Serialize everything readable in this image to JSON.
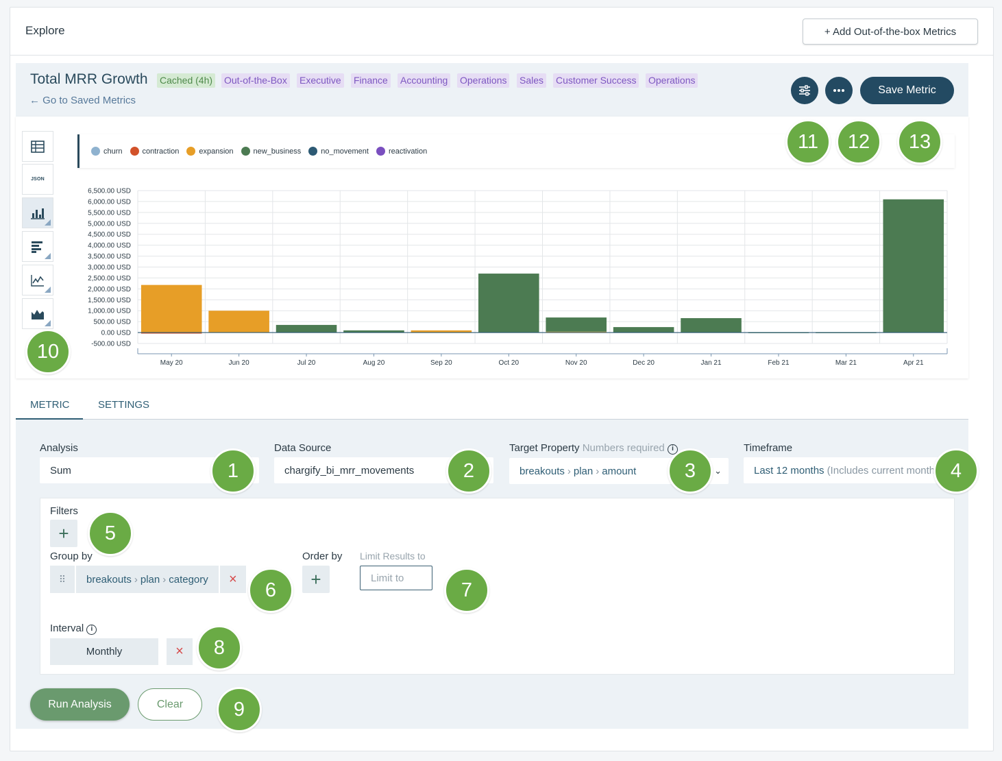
{
  "page": {
    "title": "Explore",
    "add_button": "+ Add Out-of-the-box Metrics"
  },
  "metric": {
    "title": "Total MRR Growth",
    "cache_tag": "Cached (4h)",
    "tags": [
      "Out-of-the-Box",
      "Executive",
      "Finance",
      "Accounting",
      "Operations",
      "Sales",
      "Customer Success",
      "Operations"
    ],
    "back_link": "← Go to Saved Metrics",
    "save_button": "Save Metric",
    "settings_icon": "sliders-icon",
    "more_icon": "ellipsis-icon"
  },
  "viz_toolbar": {
    "json_label": "JSON",
    "buttons": [
      "table-icon",
      "json-icon",
      "bar-chart-icon",
      "horizontal-bar-icon",
      "line-chart-icon",
      "area-chart-icon"
    ]
  },
  "chart_data": {
    "type": "bar",
    "stacked": true,
    "categories": [
      "May 20",
      "Jun 20",
      "Jul 20",
      "Aug 20",
      "Sep 20",
      "Oct 20",
      "Nov 20",
      "Dec 20",
      "Jan 21",
      "Feb 21",
      "Mar 21",
      "Apr 21"
    ],
    "series": [
      {
        "name": "churn",
        "color": "#8fb2cf",
        "values": [
          0,
          0,
          0,
          0,
          0,
          0,
          0,
          0,
          0,
          0,
          0,
          0
        ]
      },
      {
        "name": "contraction",
        "color": "#d2522a",
        "values": [
          -40,
          0,
          0,
          0,
          0,
          0,
          0,
          0,
          0,
          0,
          0,
          0
        ]
      },
      {
        "name": "expansion",
        "color": "#e79e27",
        "values": [
          2180,
          1000,
          0,
          0,
          100,
          0,
          40,
          0,
          0,
          0,
          0,
          0
        ]
      },
      {
        "name": "new_business",
        "color": "#4c7b52",
        "values": [
          0,
          0,
          350,
          100,
          0,
          2700,
          650,
          250,
          660,
          20,
          20,
          6100
        ]
      },
      {
        "name": "no_movement",
        "color": "#2d5a74",
        "values": [
          0,
          0,
          0,
          0,
          0,
          0,
          0,
          0,
          0,
          0,
          0,
          0
        ]
      },
      {
        "name": "reactivation",
        "color": "#7a4fbf",
        "values": [
          0,
          0,
          0,
          0,
          0,
          0,
          0,
          0,
          0,
          0,
          0,
          0
        ]
      }
    ],
    "y_ticks": [
      "6,500.00 USD",
      "6,000.00 USD",
      "5,500.00 USD",
      "5,000.00 USD",
      "4,500.00 USD",
      "4,000.00 USD",
      "3,500.00 USD",
      "3,000.00 USD",
      "2,500.00 USD",
      "2,000.00 USD",
      "1,500.00 USD",
      "1,000.00 USD",
      "500.00 USD",
      "0.00 USD",
      "-500.00 USD"
    ],
    "ylim": [
      -500,
      6500
    ],
    "grid": true,
    "legend_position": "top"
  },
  "tabs": {
    "metric": "METRIC",
    "settings": "SETTINGS"
  },
  "form": {
    "analysis": {
      "label": "Analysis",
      "value": "Sum"
    },
    "data_source": {
      "label": "Data Source",
      "value": "chargify_bi_mrr_movements"
    },
    "target_property": {
      "label": "Target Property",
      "hint": "Numbers required",
      "path": [
        "breakouts",
        "plan",
        "amount"
      ]
    },
    "timeframe": {
      "label": "Timeframe",
      "value": "Last 12 months",
      "hint": "(Includes current month)"
    },
    "filters": {
      "label": "Filters",
      "add": "+"
    },
    "group_by": {
      "label": "Group by",
      "path": [
        "breakouts",
        "plan",
        "category"
      ],
      "remove": "×"
    },
    "order_by": {
      "label": "Order by",
      "add": "+"
    },
    "limit": {
      "label": "Limit Results to",
      "placeholder": "Limit to"
    },
    "interval": {
      "label": "Interval",
      "value": "Monthly",
      "remove": "×"
    },
    "run_button": "Run Analysis",
    "clear_button": "Clear"
  },
  "annotations": [
    "1",
    "2",
    "3",
    "4",
    "5",
    "6",
    "7",
    "8",
    "9",
    "10",
    "11",
    "12",
    "13"
  ]
}
